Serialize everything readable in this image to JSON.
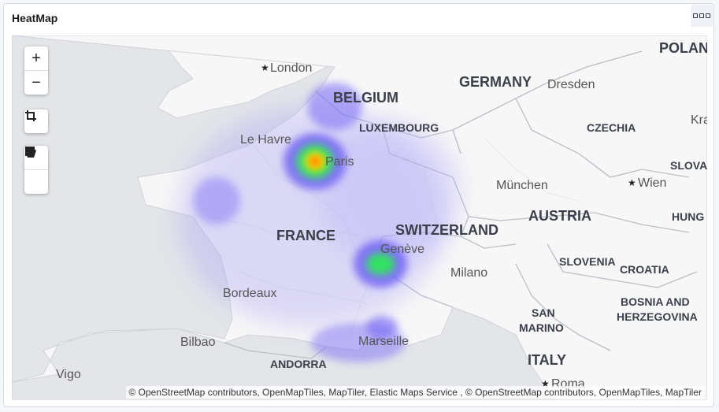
{
  "panel": {
    "title": "HeatMap"
  },
  "controls": {
    "zoom_in": "+",
    "zoom_out": "−"
  },
  "map": {
    "countries": [
      {
        "key": "poland",
        "label": "POLAN"
      },
      {
        "key": "germany",
        "label": "GERMANY"
      },
      {
        "key": "belgium",
        "label": "BELGIUM"
      },
      {
        "key": "luxembourg",
        "label": "LUXEMBOURG"
      },
      {
        "key": "czechia",
        "label": "CZECHIA"
      },
      {
        "key": "france",
        "label": "FRANCE"
      },
      {
        "key": "switzerland",
        "label": "SWITZERLAND"
      },
      {
        "key": "austria",
        "label": "AUSTRIA"
      },
      {
        "key": "slovakia",
        "label": "SLOVA"
      },
      {
        "key": "hungary",
        "label": "HUNG"
      },
      {
        "key": "slovenia",
        "label": "SLOVENIA"
      },
      {
        "key": "croatia",
        "label": "CROATIA"
      },
      {
        "key": "bosnia1",
        "label": "BOSNIA AND"
      },
      {
        "key": "bosnia2",
        "label": "HERZEGOVINA"
      },
      {
        "key": "sanmarino1",
        "label": "SAN"
      },
      {
        "key": "sanmarino2",
        "label": "MARINO"
      },
      {
        "key": "andorra",
        "label": "ANDORRA"
      },
      {
        "key": "italy",
        "label": "ITALY"
      }
    ],
    "cities": [
      {
        "key": "london",
        "label": "London"
      },
      {
        "key": "dresden",
        "label": "Dresden"
      },
      {
        "key": "krakow",
        "label": "Kra"
      },
      {
        "key": "lehavre",
        "label": "Le Havre"
      },
      {
        "key": "paris",
        "label": "Paris"
      },
      {
        "key": "munchen",
        "label": "München"
      },
      {
        "key": "wien",
        "label": "Wien"
      },
      {
        "key": "geneve",
        "label": "Genève"
      },
      {
        "key": "milano",
        "label": "Milano"
      },
      {
        "key": "bordeaux",
        "label": "Bordeaux"
      },
      {
        "key": "bilbao",
        "label": "Bilbao"
      },
      {
        "key": "marseille",
        "label": "Marseille"
      },
      {
        "key": "vigo",
        "label": "Vigo"
      },
      {
        "key": "roma",
        "label": "Roma"
      }
    ],
    "heat": {
      "low": "#7d6ff5",
      "mid": "#2ee85a",
      "high": "#ff6a00",
      "peak": "#ffe600"
    }
  },
  "attribution": "© OpenStreetMap contributors, OpenMapTiles, MapTiler, Elastic Maps Service , © OpenStreetMap contributors, OpenMapTiles, MapTiler"
}
